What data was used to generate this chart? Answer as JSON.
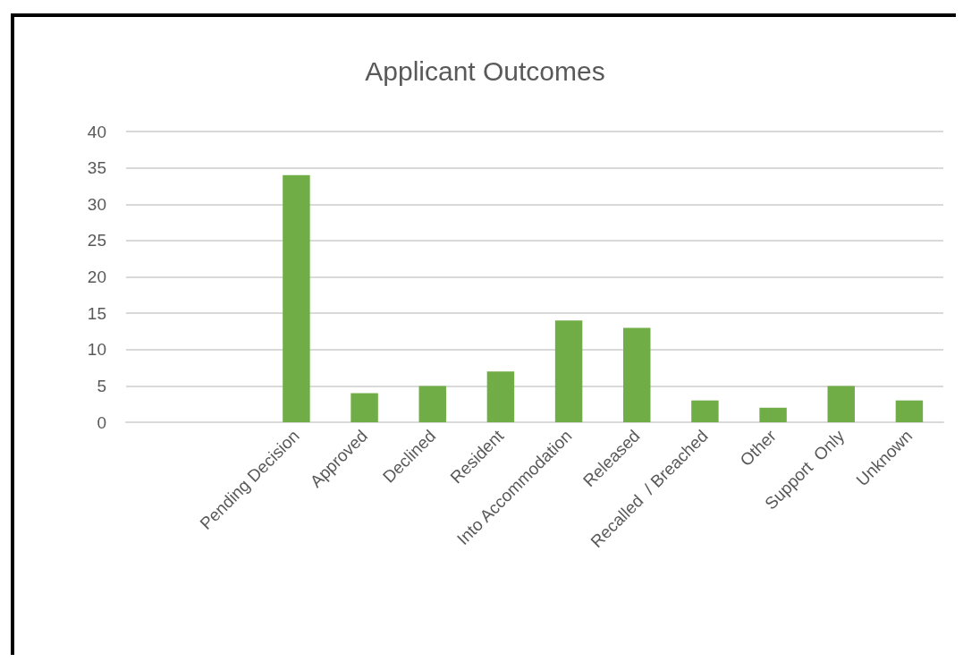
{
  "chart_data": {
    "type": "bar",
    "title": "Applicant Outcomes",
    "categories": [
      null,
      null,
      "Pending Decision",
      "Approved",
      "Declined",
      "Resident",
      "Into Accommodation",
      "Released",
      "Recalled  / Breached",
      "Other",
      "Support  Only",
      "Unknown"
    ],
    "values": [
      null,
      null,
      34,
      4,
      5,
      7,
      14,
      13,
      3,
      2,
      5,
      3
    ],
    "color": "#70ad47",
    "ylim": [
      0,
      40
    ],
    "yticks": [
      0,
      5,
      10,
      15,
      20,
      25,
      30,
      35,
      40
    ],
    "grid": "y"
  }
}
